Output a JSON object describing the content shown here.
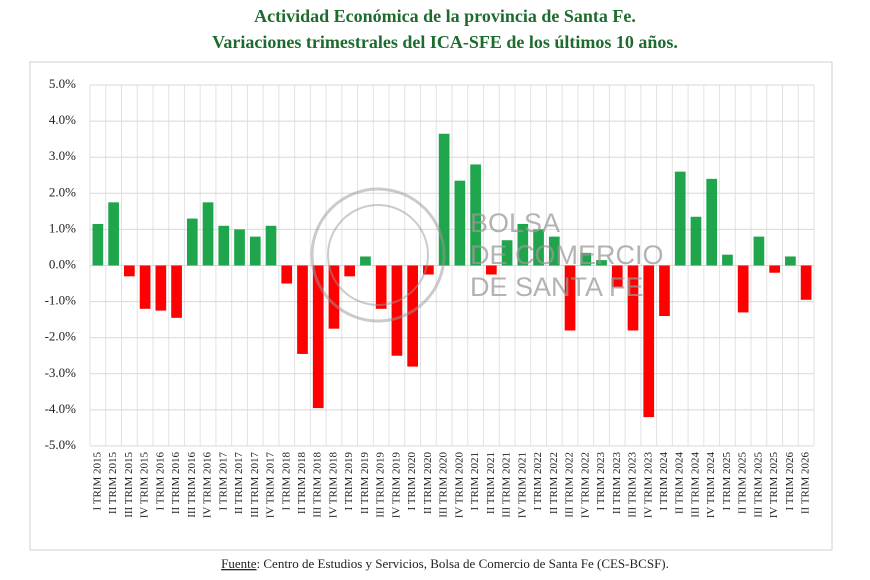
{
  "chart_data": {
    "type": "bar",
    "title": "Actividad Económica de la provincia de Santa Fe.",
    "subtitle": "Variaciones trimestrales del ICA-SFE de los últimos 10 años.",
    "categories": [
      "I TRIM 2015",
      "II TRIM 2015",
      "III TRIM 2015",
      "IV TRIM 2015",
      "I TRIM 2016",
      "II TRIM 2016",
      "III TRIM 2016",
      "IV TRIM 2016",
      "I TRIM 2017",
      "II TRIM 2017",
      "III TRIM 2017",
      "IV TRIM 2017",
      "I TRIM 2018",
      "II TRIM 2018",
      "III TRIM 2018",
      "IV TRIM 2018",
      "I TRIM 2019",
      "II TRIM 2019",
      "III TRIM 2019",
      "IV TRIM 2019",
      "I TRIM 2020",
      "II TRIM 2020",
      "III TRIM 2020",
      "IV TRIM 2020",
      "I TRIM 2021",
      "II TRIM 2021",
      "III TRIM 2021",
      "IV TRIM 2021",
      "I TRIM 2022",
      "II TRIM 2022",
      "III TRIM 2022",
      "IV TRIM 2022",
      "I TRIM 2023",
      "II TRIM 2023",
      "III TRIM 2023",
      "IV TRIM 2023",
      "I TRIM 2024",
      "II TRIM 2024",
      "III TRIM 2024",
      "IV TRIM 2024",
      "I TRIM 2025",
      "II TRIM 2025",
      "III TRIM 2025",
      "IV TRIM 2025",
      "I TRIM 2026",
      "II TRIM 2026"
    ],
    "values": [
      1.15,
      1.75,
      -0.3,
      -1.2,
      -1.25,
      -1.45,
      1.3,
      1.75,
      1.1,
      1.0,
      0.8,
      1.1,
      -0.5,
      -2.45,
      -3.95,
      -1.75,
      -0.3,
      0.25,
      -1.2,
      -2.5,
      -2.8,
      -0.25,
      3.65,
      2.35,
      2.8,
      -0.25,
      0.7,
      1.15,
      1.0,
      0.8,
      -1.8,
      0.35,
      0.15,
      -0.6,
      -1.8,
      -4.2,
      -1.4,
      2.6,
      1.35,
      2.4,
      0.3,
      -1.3,
      0.8,
      -0.2,
      0.25,
      -0.95
    ],
    "color": "#1fa64d",
    "negative_color": "#ff0000",
    "ylim": [
      -5,
      5
    ],
    "yticks": [
      {
        "value": -5,
        "label": "-5.0%"
      },
      {
        "value": -4,
        "label": "-4.0%"
      },
      {
        "value": -3,
        "label": "-3.0%"
      },
      {
        "value": -2,
        "label": "-2.0%"
      },
      {
        "value": -1,
        "label": "-1.0%"
      },
      {
        "value": 0,
        "label": "0.0%"
      },
      {
        "value": 1,
        "label": "1.0%"
      },
      {
        "value": 2,
        "label": "2.0%"
      },
      {
        "value": 3,
        "label": "3.0%"
      },
      {
        "value": 4,
        "label": "4.0%"
      },
      {
        "value": 5,
        "label": "5.0%"
      }
    ],
    "grid": true,
    "watermark": [
      "BOLSA",
      "DE COMERCIO",
      "DE SANTA FE"
    ],
    "source_label": "Fuente",
    "source_text": ": Centro de Estudios y Servicios, Bolsa de Comercio de Santa Fe (CES-BCSF)."
  }
}
